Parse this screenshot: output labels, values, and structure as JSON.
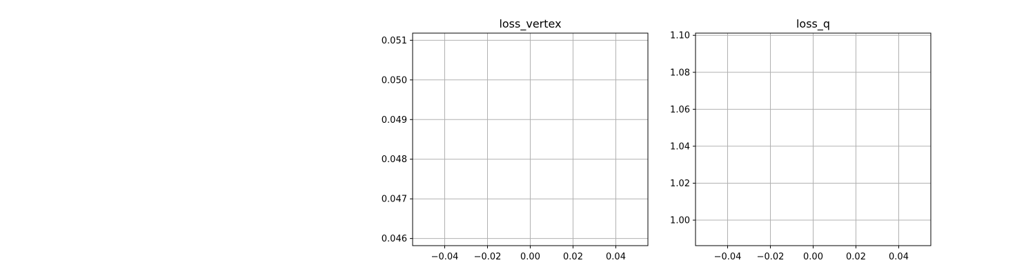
{
  "chart_data": [
    {
      "type": "line",
      "title": "loss_vertex",
      "xlabel": "",
      "ylabel": "",
      "series": [],
      "xlim": [
        -0.055,
        0.055
      ],
      "ylim": [
        0.04582,
        0.05118
      ],
      "xticks": [
        -0.04,
        -0.02,
        0.0,
        0.02,
        0.04
      ],
      "xtick_labels": [
        "−0.04",
        "−0.02",
        "0.00",
        "0.02",
        "0.04"
      ],
      "yticks": [
        0.046,
        0.047,
        0.048,
        0.049,
        0.05,
        0.051
      ],
      "ytick_labels": [
        "0.046",
        "0.047",
        "0.048",
        "0.049",
        "0.050",
        "0.051"
      ],
      "grid": true,
      "legend": "none"
    },
    {
      "type": "line",
      "title": "loss_q",
      "xlabel": "",
      "ylabel": "",
      "series": [],
      "xlim": [
        -0.055,
        0.055
      ],
      "ylim": [
        0.9862,
        1.1012
      ],
      "xticks": [
        -0.04,
        -0.02,
        0.0,
        0.02,
        0.04
      ],
      "xtick_labels": [
        "−0.04",
        "−0.02",
        "0.00",
        "0.02",
        "0.04"
      ],
      "yticks": [
        1.0,
        1.02,
        1.04,
        1.06,
        1.08,
        1.1
      ],
      "ytick_labels": [
        "1.00",
        "1.02",
        "1.04",
        "1.06",
        "1.08",
        "1.10"
      ],
      "grid": true,
      "legend": "none"
    }
  ],
  "colors": {
    "grid": "#b0b0b0",
    "axis": "#000000"
  }
}
